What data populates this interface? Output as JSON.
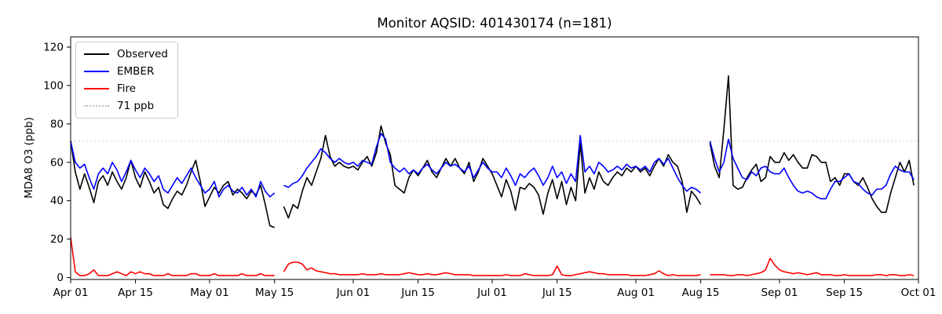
{
  "title": "Monitor AQSID: 401430174 (n=181)",
  "ylabel": "MDA8 O3 (ppb)",
  "colors": {
    "observed": "#000000",
    "ember": "#0000ff",
    "fire": "#ff0000",
    "threshold": "#cccccc",
    "axis": "#000000",
    "background": "#ffffff"
  },
  "legend": {
    "items": [
      {
        "label": "Observed",
        "color": "#000000",
        "style": "solid"
      },
      {
        "label": "EMBER",
        "color": "#0000ff",
        "style": "solid"
      },
      {
        "label": "Fire",
        "color": "#ff0000",
        "style": "solid"
      },
      {
        "label": "71 ppb",
        "color": "#c0c0c0",
        "style": "dotted"
      }
    ]
  },
  "chart_data": {
    "type": "line",
    "title": "Monitor AQSID: 401430174 (n=181)",
    "xlabel": "",
    "ylabel": "MDA8 O3 (ppb)",
    "grid": false,
    "legend_position": "upper left",
    "x_unit": "days since Apr 01",
    "xlim": [
      0,
      183
    ],
    "ylim": [
      -1,
      125.3
    ],
    "y_ticks": [
      0,
      20,
      40,
      60,
      80,
      100,
      120
    ],
    "x_tick_days": [
      0,
      14,
      30,
      44,
      61,
      75,
      91,
      105,
      122,
      136,
      153,
      167,
      183
    ],
    "x_tick_labels": [
      "Apr 01",
      "Apr 15",
      "May 01",
      "May 15",
      "Jun 01",
      "Jun 15",
      "Jul 01",
      "Jul 15",
      "Aug 01",
      "Aug 15",
      "Sep 01",
      "Sep 15",
      "Oct 01"
    ],
    "threshold": {
      "value": 71,
      "label": "71 ppb",
      "color": "#cccccc"
    },
    "series": [
      {
        "name": "Observed",
        "color": "#000000",
        "values": [
          71,
          55,
          46,
          54,
          47,
          39,
          50,
          53,
          48,
          55,
          50,
          46,
          52,
          61,
          52,
          47,
          55,
          50,
          44,
          47,
          38,
          36,
          41,
          45,
          43,
          48,
          55,
          61,
          50,
          37,
          42,
          47,
          44,
          48,
          50,
          43,
          46,
          44,
          41,
          45,
          43,
          48,
          38,
          27,
          26,
          null,
          37,
          31,
          38,
          36,
          45,
          52,
          48,
          55,
          62,
          74,
          63,
          58,
          60,
          58,
          57,
          58,
          56,
          60,
          63,
          58,
          65,
          79,
          70,
          64,
          48,
          46,
          44,
          52,
          56,
          53,
          57,
          61,
          55,
          52,
          57,
          62,
          58,
          62,
          57,
          54,
          60,
          50,
          55,
          62,
          58,
          54,
          48,
          42,
          51,
          45,
          35,
          47,
          46,
          49,
          47,
          43,
          33,
          44,
          51,
          41,
          50,
          38,
          47,
          40,
          70,
          44,
          52,
          46,
          55,
          50,
          48,
          52,
          55,
          53,
          57,
          55,
          58,
          55,
          57,
          53,
          58,
          62,
          58,
          64,
          60,
          58,
          50,
          34,
          45,
          42,
          38,
          null,
          70,
          58,
          52,
          77,
          105,
          48,
          46,
          47,
          52,
          56,
          59,
          50,
          52,
          63,
          60,
          60,
          65,
          61,
          64,
          60,
          57,
          57,
          64,
          63,
          60,
          60,
          50,
          52,
          48,
          54,
          54,
          50,
          48,
          52,
          47,
          41,
          37,
          34,
          34,
          44,
          52,
          60,
          55,
          61,
          48
        ]
      },
      {
        "name": "EMBER",
        "color": "#0000ff",
        "values": [
          71,
          60,
          57,
          59,
          52,
          46,
          54,
          57,
          54,
          60,
          56,
          50,
          55,
          61,
          56,
          52,
          57,
          54,
          50,
          53,
          46,
          44,
          48,
          52,
          49,
          53,
          57,
          52,
          48,
          44,
          46,
          50,
          42,
          46,
          48,
          45,
          44,
          47,
          43,
          46,
          42,
          50,
          45,
          42,
          44,
          null,
          48,
          47,
          49,
          50,
          53,
          57,
          60,
          63,
          67,
          65,
          62,
          60,
          62,
          60,
          59,
          60,
          58,
          61,
          60,
          59,
          68,
          75,
          72,
          60,
          57,
          55,
          57,
          54,
          56,
          54,
          57,
          59,
          56,
          54,
          57,
          60,
          58,
          59,
          57,
          55,
          58,
          52,
          56,
          60,
          57,
          55,
          55,
          52,
          57,
          53,
          48,
          54,
          52,
          55,
          57,
          53,
          48,
          52,
          58,
          52,
          55,
          49,
          54,
          50,
          74,
          55,
          58,
          54,
          60,
          58,
          55,
          56,
          58,
          56,
          59,
          57,
          58,
          56,
          58,
          55,
          60,
          62,
          59,
          62,
          57,
          52,
          48,
          45,
          47,
          46,
          44,
          null,
          71,
          62,
          55,
          60,
          72,
          62,
          57,
          52,
          51,
          55,
          53,
          57,
          58,
          55,
          54,
          54,
          57,
          52,
          48,
          45,
          44,
          45,
          44,
          42,
          41,
          41,
          46,
          50,
          50,
          52,
          54,
          50,
          49,
          46,
          44,
          43,
          46,
          46,
          48,
          54,
          58,
          56,
          55,
          55,
          51
        ]
      },
      {
        "name": "Fire",
        "color": "#ff0000",
        "values": [
          21,
          3,
          1,
          1,
          2,
          4,
          1,
          1,
          1,
          2,
          3,
          2,
          1,
          3,
          2,
          3,
          2,
          2,
          1,
          1,
          1,
          2,
          1,
          1,
          1,
          1,
          2,
          2,
          1,
          1,
          1,
          2,
          1,
          1,
          1,
          1,
          1,
          2,
          1,
          1,
          1,
          2,
          1,
          1,
          1,
          null,
          3,
          7,
          8,
          8,
          7,
          4,
          5,
          3.5,
          3,
          2.5,
          2,
          2,
          1.5,
          1.5,
          1.5,
          1.5,
          1.5,
          2,
          1.5,
          1.5,
          1.5,
          2,
          1.5,
          1.5,
          1.5,
          1.5,
          2,
          2.5,
          2,
          1.5,
          1.5,
          2,
          1.5,
          1.5,
          2,
          2.5,
          2,
          1.5,
          1.5,
          1.5,
          1.5,
          1,
          1,
          1,
          1,
          1,
          1,
          1,
          1.5,
          1,
          1,
          1,
          2,
          1.5,
          1,
          1,
          1,
          1,
          1.5,
          6,
          1.5,
          1,
          1,
          1.5,
          2,
          2.5,
          3,
          2.5,
          2,
          2,
          1.5,
          1.5,
          1.5,
          1.5,
          1.5,
          1,
          1,
          1,
          1,
          1.5,
          2,
          3.5,
          2,
          1,
          1.5,
          1,
          1,
          1,
          1,
          1,
          1.5,
          null,
          1.5,
          1.5,
          1.5,
          1.5,
          1,
          1,
          1.5,
          1.5,
          1,
          1.5,
          2,
          2.5,
          4,
          10,
          6.5,
          4,
          3,
          2.5,
          2,
          2.5,
          2,
          1.5,
          2,
          2.5,
          1.5,
          1.5,
          1.5,
          1,
          1,
          1.5,
          1,
          1,
          1,
          1,
          1,
          1,
          1.5,
          1.5,
          1,
          1.5,
          1.5,
          1,
          1,
          1.5,
          1
        ]
      }
    ]
  }
}
